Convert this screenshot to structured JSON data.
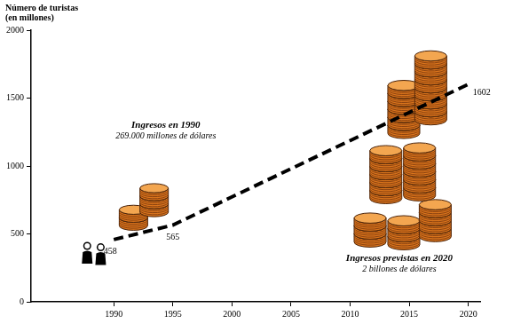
{
  "chart_data": {
    "type": "line",
    "y_label": [
      "Número de turistas",
      "(en millones)"
    ],
    "x": [
      1990,
      1995,
      2020
    ],
    "values": [
      458,
      565,
      1602
    ],
    "color": "#000000",
    "line_style": "dashed",
    "xlim": [
      1983,
      2021
    ],
    "xticks": [
      1990,
      1995,
      2000,
      2005,
      2010,
      2015,
      2020
    ],
    "ylim": [
      0,
      2000
    ],
    "yticks": [
      0,
      500,
      1000,
      1500,
      2000
    ],
    "grid": false,
    "data_labels": true,
    "annotations": [
      "Ingresos en 1990",
      "269.000 millones de dólares",
      "Ingresos previstas en 2020",
      "2 billones de dólares"
    ]
  }
}
